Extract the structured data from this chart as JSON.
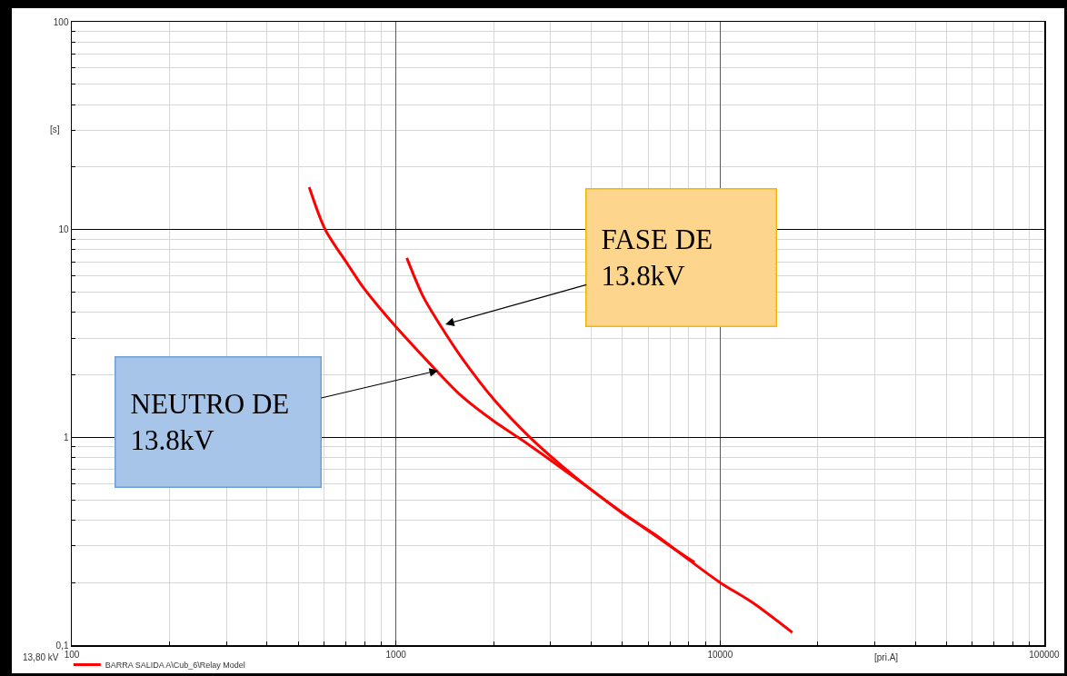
{
  "chart_data": {
    "type": "line",
    "xlabel": "[pri.A]",
    "ylabel": "[s]",
    "log": "xy",
    "xlim": [
      100,
      100000
    ],
    "ylim": [
      0.1,
      100
    ],
    "xticks": [
      100,
      {
        "value": 200,
        "label": null
      },
      {
        "value": 300,
        "label": null
      },
      {
        "value": 400,
        "label": null
      },
      {
        "value": 500,
        "label": null
      },
      {
        "value": 600,
        "label": null
      },
      {
        "value": 700,
        "label": null
      },
      {
        "value": 800,
        "label": null
      },
      {
        "value": 900,
        "label": null
      },
      1000,
      {
        "value": 2000,
        "label": null
      },
      {
        "value": 3000,
        "label": null
      },
      {
        "value": 4000,
        "label": null
      },
      {
        "value": 5000,
        "label": null
      },
      {
        "value": 6000,
        "label": null
      },
      {
        "value": 7000,
        "label": null
      },
      {
        "value": 8000,
        "label": null
      },
      {
        "value": 9000,
        "label": null
      },
      10000,
      {
        "value": 20000,
        "label": null
      },
      {
        "value": 30000,
        "label": null
      },
      {
        "value": 40000,
        "label": null
      },
      {
        "value": 50000,
        "label": null
      },
      {
        "value": 60000,
        "label": null
      },
      {
        "value": 70000,
        "label": null
      },
      {
        "value": 80000,
        "label": null
      },
      {
        "value": 90000,
        "label": null
      },
      100000
    ],
    "yticks": [
      {
        "value": 0.1,
        "label": "0,1"
      },
      {
        "value": 0.2,
        "label": null
      },
      {
        "value": 0.3,
        "label": null
      },
      {
        "value": 0.4,
        "label": null
      },
      {
        "value": 0.5,
        "label": null
      },
      {
        "value": 0.6,
        "label": null
      },
      {
        "value": 0.7,
        "label": null
      },
      {
        "value": 0.8,
        "label": null
      },
      {
        "value": 0.9,
        "label": null
      },
      1,
      {
        "value": 2,
        "label": null
      },
      {
        "value": 3,
        "label": null
      },
      {
        "value": 4,
        "label": null
      },
      {
        "value": 5,
        "label": null
      },
      {
        "value": 6,
        "label": null
      },
      {
        "value": 7,
        "label": null
      },
      {
        "value": 8,
        "label": null
      },
      {
        "value": 9,
        "label": null
      },
      10,
      {
        "value": 20,
        "label": null
      },
      {
        "value": 30,
        "label": null
      },
      {
        "value": 40,
        "label": null
      },
      {
        "value": 50,
        "label": null
      },
      {
        "value": 60,
        "label": null
      },
      {
        "value": 70,
        "label": null
      },
      {
        "value": 80,
        "label": null
      },
      {
        "value": 90,
        "label": null
      },
      100
    ],
    "grid": true,
    "legend": "bottom",
    "series": [
      {
        "name": "BARRA SALIDA A\\Cub_6\\Relay Model",
        "color": "#ff0000",
        "x": [
          540,
          605,
          710,
          790,
          890,
          1000,
          1260,
          1580,
          2000,
          2380,
          3020,
          3940,
          5010,
          6310,
          7940,
          10000,
          12600,
          16700
        ],
        "values": [
          16,
          10,
          6.8,
          5.3,
          4.2,
          3.4,
          2.3,
          1.6,
          1.2,
          1.0,
          0.77,
          0.57,
          0.43,
          0.34,
          0.26,
          0.2,
          0.16,
          0.115
        ]
      },
      {
        "color": "#ff0000",
        "x": [
          1080,
          1210,
          1380,
          1600,
          2020,
          2590,
          3180,
          3940,
          5040,
          7010,
          8340
        ],
        "values": [
          7.3,
          4.8,
          3.4,
          2.4,
          1.5,
          1.0,
          0.75,
          0.57,
          0.43,
          0.3,
          0.25
        ]
      }
    ],
    "annotations": [
      {
        "text": "FASE DE 13.8kV",
        "x": 1420,
        "y": 3.5
      },
      {
        "text": "NEUTRO DE 13.8kV",
        "x": 1350,
        "y": 2.1
      },
      "13,80 kV"
    ]
  }
}
